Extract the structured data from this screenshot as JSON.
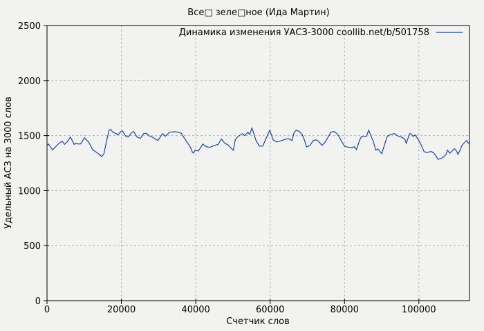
{
  "chart_data": {
    "type": "line",
    "title": "Все□ зеле□ное (Ида Мартин)",
    "xlabel": "Счетчик слов",
    "ylabel": "Удельный АСЗ на 3000 слов",
    "legend": {
      "label": "Динамика изменения УАСЗ-3000  coollib.net/b/501758",
      "position": "top-right-inside"
    },
    "xlim": [
      0,
      113600
    ],
    "ylim": [
      0,
      2500
    ],
    "xticks": [
      0,
      20000,
      40000,
      60000,
      80000,
      100000
    ],
    "yticks": [
      0,
      500,
      1000,
      1500,
      2000,
      2500
    ],
    "grid": true,
    "grid_style": "dashed",
    "colors": {
      "line": "#1a449e",
      "grid": "#b3b3b3",
      "frame": "#000000",
      "background": "#f2f2f0",
      "text": "#000000"
    },
    "series": [
      {
        "name": "Динамика изменения УАСЗ-3000",
        "points": [
          [
            0,
            1410
          ],
          [
            400,
            1423
          ],
          [
            1500,
            1370
          ],
          [
            3200,
            1430
          ],
          [
            4100,
            1448
          ],
          [
            4700,
            1420
          ],
          [
            5400,
            1442
          ],
          [
            6300,
            1486
          ],
          [
            7300,
            1420
          ],
          [
            7800,
            1430
          ],
          [
            8400,
            1423
          ],
          [
            9100,
            1425
          ],
          [
            10100,
            1480
          ],
          [
            11200,
            1440
          ],
          [
            11900,
            1398
          ],
          [
            12300,
            1367
          ],
          [
            12800,
            1360
          ],
          [
            13800,
            1335
          ],
          [
            14300,
            1322
          ],
          [
            14700,
            1310
          ],
          [
            15300,
            1335
          ],
          [
            16000,
            1450
          ],
          [
            16700,
            1549
          ],
          [
            17100,
            1556
          ],
          [
            17700,
            1530
          ],
          [
            18600,
            1518
          ],
          [
            19000,
            1505
          ],
          [
            19900,
            1537
          ],
          [
            20300,
            1540
          ],
          [
            21200,
            1493
          ],
          [
            21800,
            1486
          ],
          [
            22700,
            1524
          ],
          [
            23300,
            1537
          ],
          [
            24200,
            1486
          ],
          [
            25100,
            1474
          ],
          [
            26000,
            1518
          ],
          [
            26800,
            1520
          ],
          [
            27400,
            1499
          ],
          [
            28300,
            1486
          ],
          [
            29800,
            1455
          ],
          [
            31100,
            1518
          ],
          [
            31800,
            1493
          ],
          [
            32900,
            1530
          ],
          [
            34200,
            1535
          ],
          [
            35400,
            1530
          ],
          [
            36100,
            1520
          ],
          [
            37600,
            1442
          ],
          [
            38500,
            1398
          ],
          [
            39100,
            1348
          ],
          [
            39400,
            1341
          ],
          [
            39800,
            1367
          ],
          [
            40700,
            1360
          ],
          [
            41900,
            1423
          ],
          [
            42800,
            1400
          ],
          [
            43700,
            1392
          ],
          [
            45000,
            1410
          ],
          [
            46000,
            1420
          ],
          [
            46900,
            1468
          ],
          [
            47800,
            1430
          ],
          [
            48700,
            1415
          ],
          [
            49700,
            1379
          ],
          [
            50100,
            1367
          ],
          [
            50600,
            1461
          ],
          [
            51200,
            1486
          ],
          [
            52500,
            1518
          ],
          [
            53200,
            1500
          ],
          [
            54000,
            1530
          ],
          [
            54500,
            1510
          ],
          [
            55100,
            1568
          ],
          [
            56200,
            1455
          ],
          [
            57100,
            1404
          ],
          [
            58000,
            1405
          ],
          [
            59000,
            1480
          ],
          [
            59900,
            1549
          ],
          [
            60800,
            1461
          ],
          [
            61800,
            1442
          ],
          [
            62700,
            1450
          ],
          [
            64200,
            1468
          ],
          [
            65100,
            1470
          ],
          [
            65900,
            1455
          ],
          [
            66400,
            1524
          ],
          [
            67000,
            1549
          ],
          [
            67700,
            1540
          ],
          [
            68600,
            1510
          ],
          [
            69200,
            1460
          ],
          [
            69800,
            1398
          ],
          [
            70700,
            1410
          ],
          [
            71600,
            1455
          ],
          [
            72400,
            1461
          ],
          [
            72900,
            1450
          ],
          [
            73500,
            1430
          ],
          [
            73900,
            1411
          ],
          [
            74800,
            1440
          ],
          [
            75700,
            1493
          ],
          [
            76300,
            1530
          ],
          [
            77200,
            1537
          ],
          [
            77900,
            1520
          ],
          [
            78500,
            1493
          ],
          [
            79100,
            1455
          ],
          [
            80000,
            1404
          ],
          [
            80900,
            1395
          ],
          [
            81700,
            1392
          ],
          [
            82200,
            1390
          ],
          [
            82600,
            1400
          ],
          [
            83200,
            1373
          ],
          [
            84100,
            1461
          ],
          [
            84600,
            1493
          ],
          [
            85400,
            1493
          ],
          [
            85900,
            1495
          ],
          [
            86500,
            1549
          ],
          [
            87200,
            1490
          ],
          [
            87800,
            1442
          ],
          [
            88400,
            1367
          ],
          [
            88900,
            1380
          ],
          [
            90000,
            1335
          ],
          [
            91000,
            1442
          ],
          [
            91500,
            1493
          ],
          [
            92500,
            1511
          ],
          [
            93400,
            1518
          ],
          [
            94300,
            1497
          ],
          [
            95300,
            1486
          ],
          [
            96200,
            1470
          ],
          [
            96600,
            1430
          ],
          [
            97500,
            1518
          ],
          [
            97900,
            1515
          ],
          [
            98400,
            1493
          ],
          [
            99000,
            1505
          ],
          [
            99900,
            1460
          ],
          [
            100500,
            1423
          ],
          [
            101400,
            1354
          ],
          [
            102100,
            1345
          ],
          [
            102700,
            1350
          ],
          [
            103300,
            1355
          ],
          [
            104000,
            1341
          ],
          [
            104600,
            1316
          ],
          [
            105100,
            1285
          ],
          [
            105900,
            1290
          ],
          [
            106800,
            1310
          ],
          [
            107300,
            1330
          ],
          [
            107700,
            1367
          ],
          [
            108300,
            1340
          ],
          [
            108800,
            1355
          ],
          [
            109600,
            1379
          ],
          [
            110100,
            1360
          ],
          [
            110500,
            1329
          ],
          [
            111100,
            1370
          ],
          [
            111600,
            1411
          ],
          [
            112400,
            1442
          ],
          [
            112900,
            1455
          ],
          [
            113300,
            1430
          ],
          [
            113500,
            1435
          ]
        ]
      }
    ]
  }
}
